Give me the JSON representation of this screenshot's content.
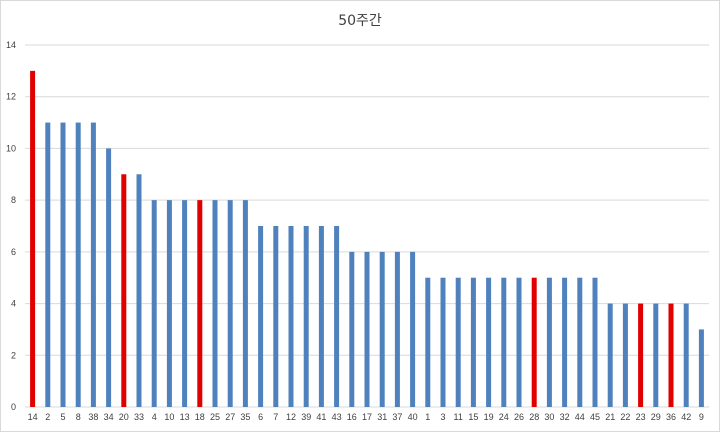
{
  "chart_data": {
    "type": "bar",
    "title": "50주간",
    "xlabel": "",
    "ylabel": "",
    "ylim": [
      0,
      14
    ],
    "yticks": [
      0,
      2,
      4,
      6,
      8,
      10,
      12,
      14
    ],
    "grid": true,
    "legend": "none",
    "colors": {
      "default": "#4f81bd",
      "highlight": "#e00000",
      "grid": "#d9d9d9"
    },
    "categories": [
      "14",
      "2",
      "5",
      "8",
      "38",
      "34",
      "20",
      "33",
      "4",
      "10",
      "13",
      "18",
      "25",
      "27",
      "35",
      "6",
      "7",
      "12",
      "39",
      "41",
      "43",
      "16",
      "17",
      "31",
      "37",
      "40",
      "1",
      "3",
      "11",
      "15",
      "19",
      "24",
      "26",
      "28",
      "30",
      "32",
      "44",
      "45",
      "21",
      "22",
      "23",
      "29",
      "36",
      "42",
      "9"
    ],
    "values": [
      13,
      11,
      11,
      11,
      11,
      10,
      9,
      9,
      8,
      8,
      8,
      8,
      8,
      8,
      8,
      7,
      7,
      7,
      7,
      7,
      7,
      6,
      6,
      6,
      6,
      6,
      5,
      5,
      5,
      5,
      5,
      5,
      5,
      5,
      5,
      5,
      5,
      5,
      4,
      4,
      4,
      4,
      4,
      4,
      3
    ],
    "highlighted_categories": [
      "14",
      "20",
      "18",
      "28",
      "23",
      "36"
    ]
  }
}
